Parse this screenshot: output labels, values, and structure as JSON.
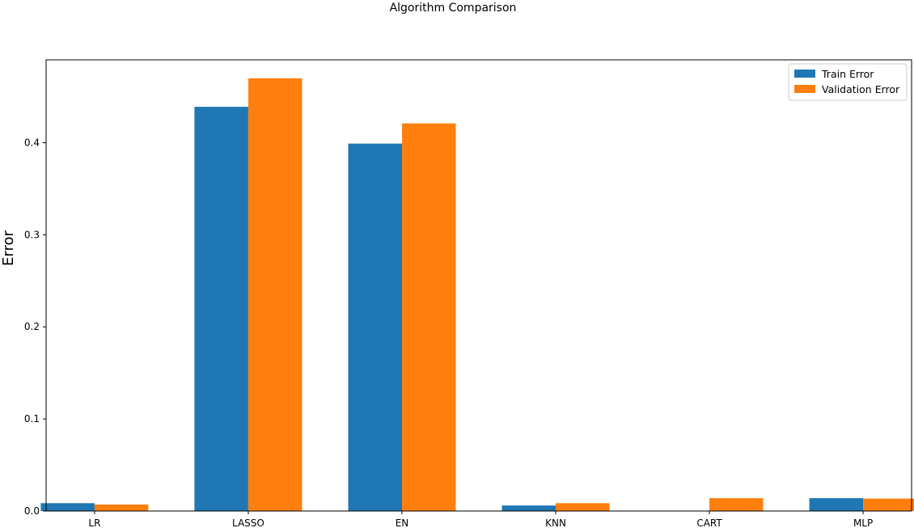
{
  "chart_data": {
    "type": "bar",
    "title": "Algorithm Comparison",
    "xlabel": "",
    "ylabel": "Error",
    "categories": [
      "LR",
      "LASSO",
      "EN",
      "KNN",
      "CART",
      "MLP"
    ],
    "series": [
      {
        "name": "Train Error",
        "color": "#1f77b4",
        "values": [
          0.0085,
          0.439,
          0.399,
          0.006,
          0.0,
          0.014
        ]
      },
      {
        "name": "Validation Error",
        "color": "#ff7f0e",
        "values": [
          0.007,
          0.47,
          0.421,
          0.0085,
          0.014,
          0.0135
        ]
      }
    ],
    "ylim": [
      0,
      0.49
    ],
    "yticks": [
      "0.0",
      "0.1",
      "0.2",
      "0.3",
      "0.4"
    ],
    "grid": false,
    "legend_position": "top-right"
  }
}
